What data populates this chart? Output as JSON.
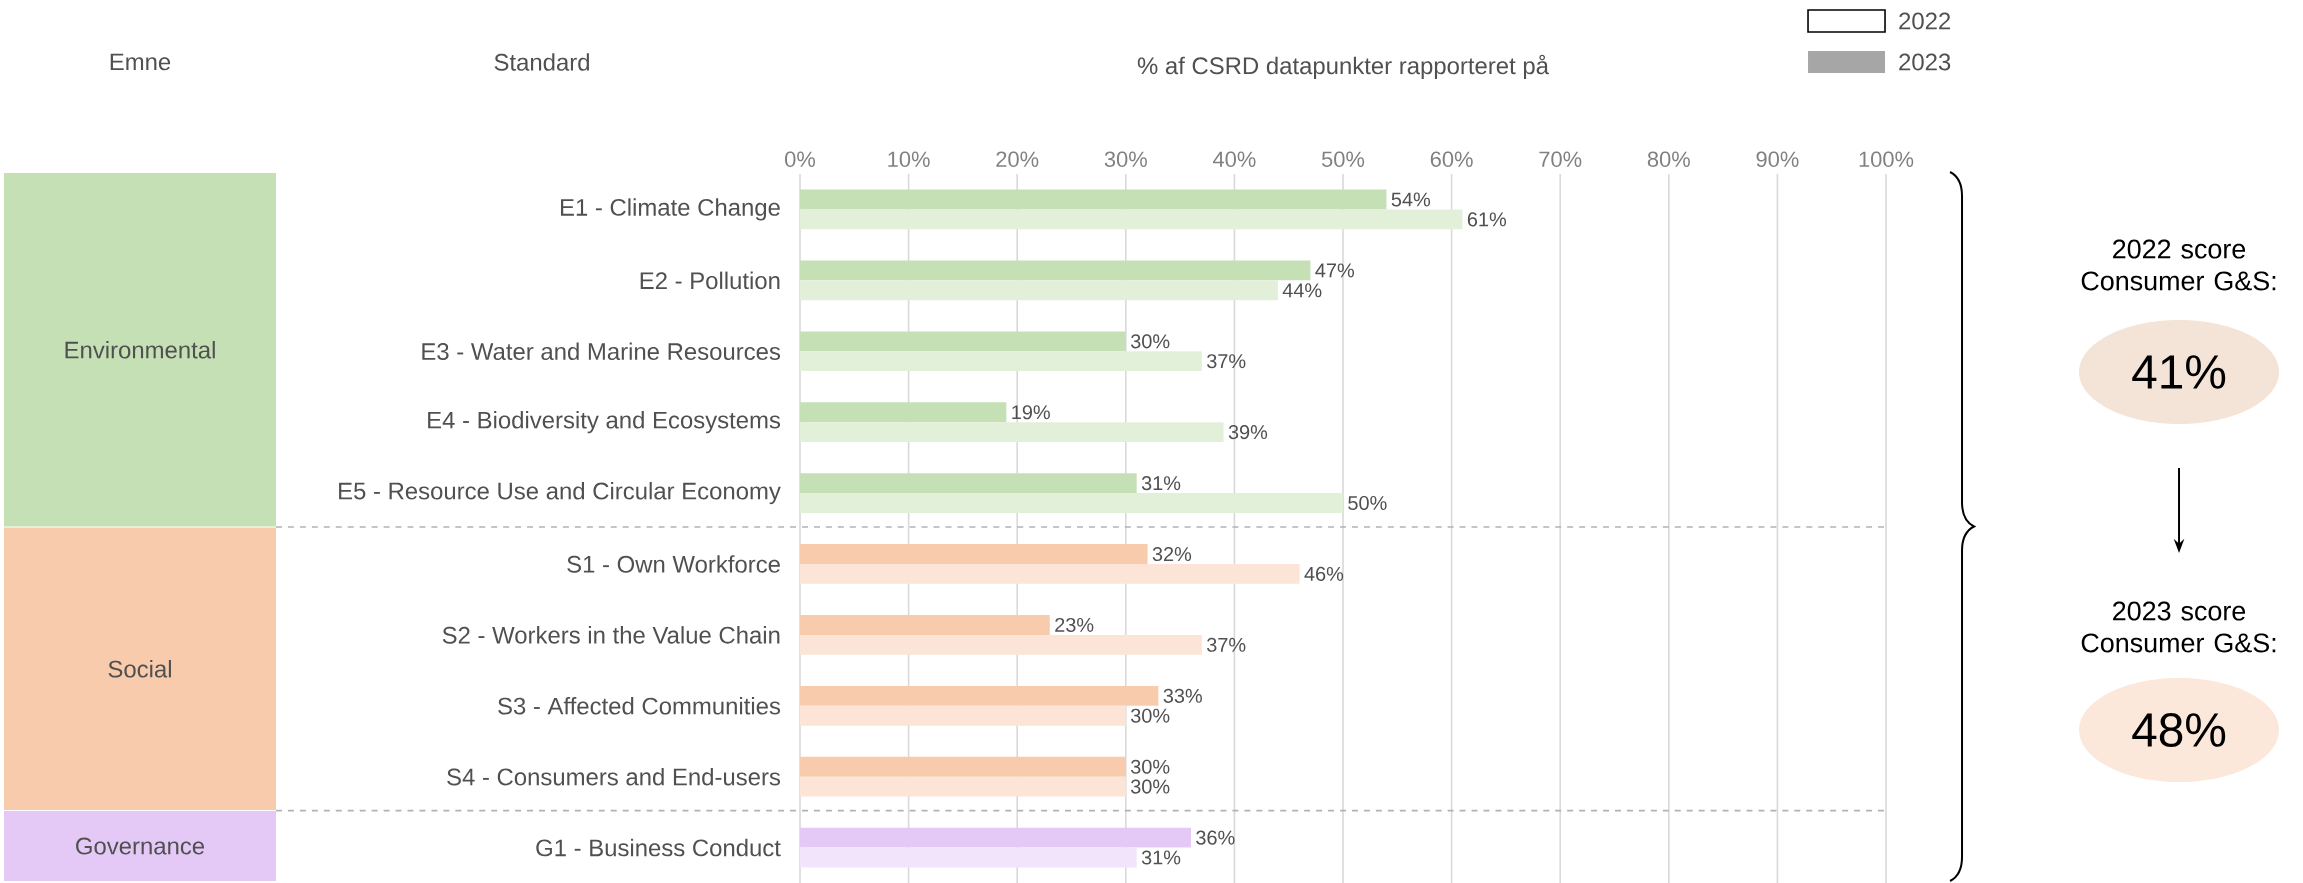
{
  "chart_data": {
    "type": "bar",
    "orientation": "horizontal",
    "xlabel": "% af CSRD datapunkter rapporteret på",
    "categories": [
      "E1 - Climate Change",
      "E2 - Pollution",
      "E3 - Water and Marine Resources",
      "E4 - Biodiversity and Ecosystems",
      "E5 - Resource Use and Circular Economy",
      "S1 - Own Workforce",
      "S2 - Workers in the Value Chain",
      "S3 - Affected Communities",
      "S4 - Consumers and End-users",
      "G1 - Business Conduct"
    ],
    "series": [
      {
        "name": "2022",
        "colors": [
          "#c5e0b4",
          "#c5e0b4",
          "#c5e0b4",
          "#c5e0b4",
          "#c5e0b4",
          "#f8cbad",
          "#f8cbad",
          "#f8cbad",
          "#f8cbad",
          "#e4c9f7"
        ],
        "values": [
          54,
          47,
          30,
          19,
          31,
          32,
          23,
          33,
          30,
          36
        ],
        "value_labels": [
          "54%",
          "47%",
          "30%",
          "19%",
          "31%",
          "32%",
          "23%",
          "33%",
          "30%",
          "36%"
        ]
      },
      {
        "name": "2023",
        "colors": [
          "#e2f0d9",
          "#e2f0d9",
          "#e2f0d9",
          "#e2f0d9",
          "#e2f0d9",
          "#fce5d6",
          "#fce5d6",
          "#fce5d6",
          "#fce5d6",
          "#f1e4fb"
        ],
        "values": [
          61,
          44,
          37,
          39,
          50,
          46,
          37,
          30,
          30,
          31
        ],
        "value_labels": [
          "61%",
          "44%",
          "37%",
          "39%",
          "50%",
          "46%",
          "37%",
          "30%",
          "30%",
          "31%"
        ]
      }
    ],
    "xlim": [
      0,
      100
    ],
    "xticks": [
      {
        "value": 0,
        "label": "0%"
      },
      {
        "value": 10,
        "label": "10%"
      },
      {
        "value": 20,
        "label": "20%"
      },
      {
        "value": 30,
        "label": "30%"
      },
      {
        "value": 40,
        "label": "40%"
      },
      {
        "value": 50,
        "label": "50%"
      },
      {
        "value": 60,
        "label": "60%"
      },
      {
        "value": 70,
        "label": "70%"
      },
      {
        "value": 80,
        "label": "80%"
      },
      {
        "value": 90,
        "label": "90%"
      },
      {
        "value": 100,
        "label": "100%"
      }
    ],
    "grid": "x",
    "legend": "top right",
    "annotations": [
      "Emne",
      "Standard",
      "Environmental",
      "Social",
      "Governance",
      "2022 score Consumer G&S:",
      "41%",
      "2023 score Consumer G&S:",
      "48%"
    ]
  }
}
